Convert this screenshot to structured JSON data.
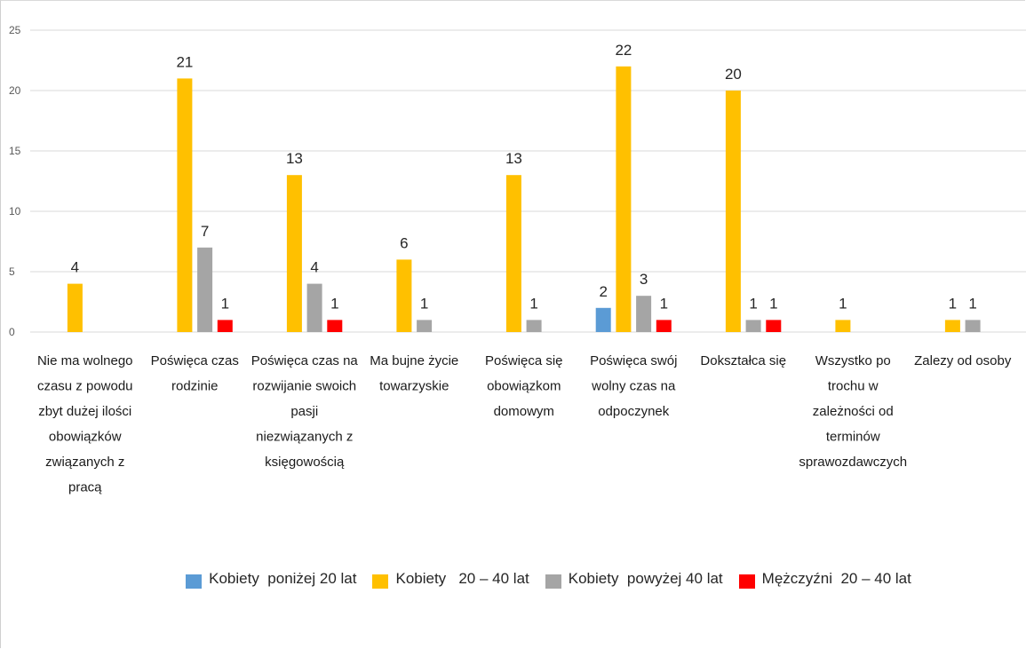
{
  "chart_data": {
    "type": "bar",
    "title": "",
    "xlabel": "",
    "ylabel": "",
    "ylim": [
      0,
      25
    ],
    "yticks": [
      0,
      5,
      10,
      15,
      20,
      25
    ],
    "grid": true,
    "legend_position": "bottom",
    "categories": [
      "Nie ma wolnego czasu z powodu zbyt dużej ilości obowiązków związanych z pracą",
      "Poświęca czas rodzinie",
      "Poświęca czas na rozwijanie swoich pasji niezwiązanych z księgowością",
      "Ma bujne życie towarzyskie",
      "Poświęca się obowiązkom domowym",
      "Poświęca swój wolny czas na odpoczynek",
      "Dokształca się",
      "Wszystko po trochu w zależności od terminów sprawozdawczych",
      "Zalezy od osoby"
    ],
    "category_lines": [
      [
        "Nie ma wolnego",
        "czasu z powodu",
        "zbyt dużej ilości",
        "obowiązków",
        "związanych z",
        "pracą"
      ],
      [
        "Poświęca czas",
        "rodzinie"
      ],
      [
        "Poświęca czas na",
        "rozwijanie swoich",
        "pasji",
        "niezwiązanych z",
        "księgowością"
      ],
      [
        "Ma bujne życie",
        "towarzyskie"
      ],
      [
        "Poświęca się",
        "obowiązkom",
        "domowym"
      ],
      [
        "Poświęca swój",
        "wolny czas na",
        "odpoczynek"
      ],
      [
        "Dokształca się"
      ],
      [
        "Wszystko po",
        "trochu w",
        "zależności od",
        "terminów",
        "sprawozdawczych"
      ],
      [
        "Zalezy od osoby"
      ]
    ],
    "series": [
      {
        "name": "Kobiety  poniżej 20 lat",
        "color": "#5b9bd5",
        "values": [
          null,
          null,
          null,
          null,
          null,
          2,
          null,
          null,
          null
        ]
      },
      {
        "name": "Kobiety   20 – 40 lat",
        "color": "#ffc000",
        "values": [
          4,
          21,
          13,
          6,
          13,
          22,
          20,
          1,
          1
        ]
      },
      {
        "name": "Kobiety  powyżej 40 lat",
        "color": "#a5a5a5",
        "values": [
          null,
          7,
          4,
          1,
          1,
          3,
          1,
          null,
          1
        ]
      },
      {
        "name": "Mężczyźni  20 – 40 lat",
        "color": "#ff0000",
        "values": [
          null,
          1,
          1,
          null,
          null,
          1,
          1,
          null,
          null
        ]
      }
    ]
  }
}
